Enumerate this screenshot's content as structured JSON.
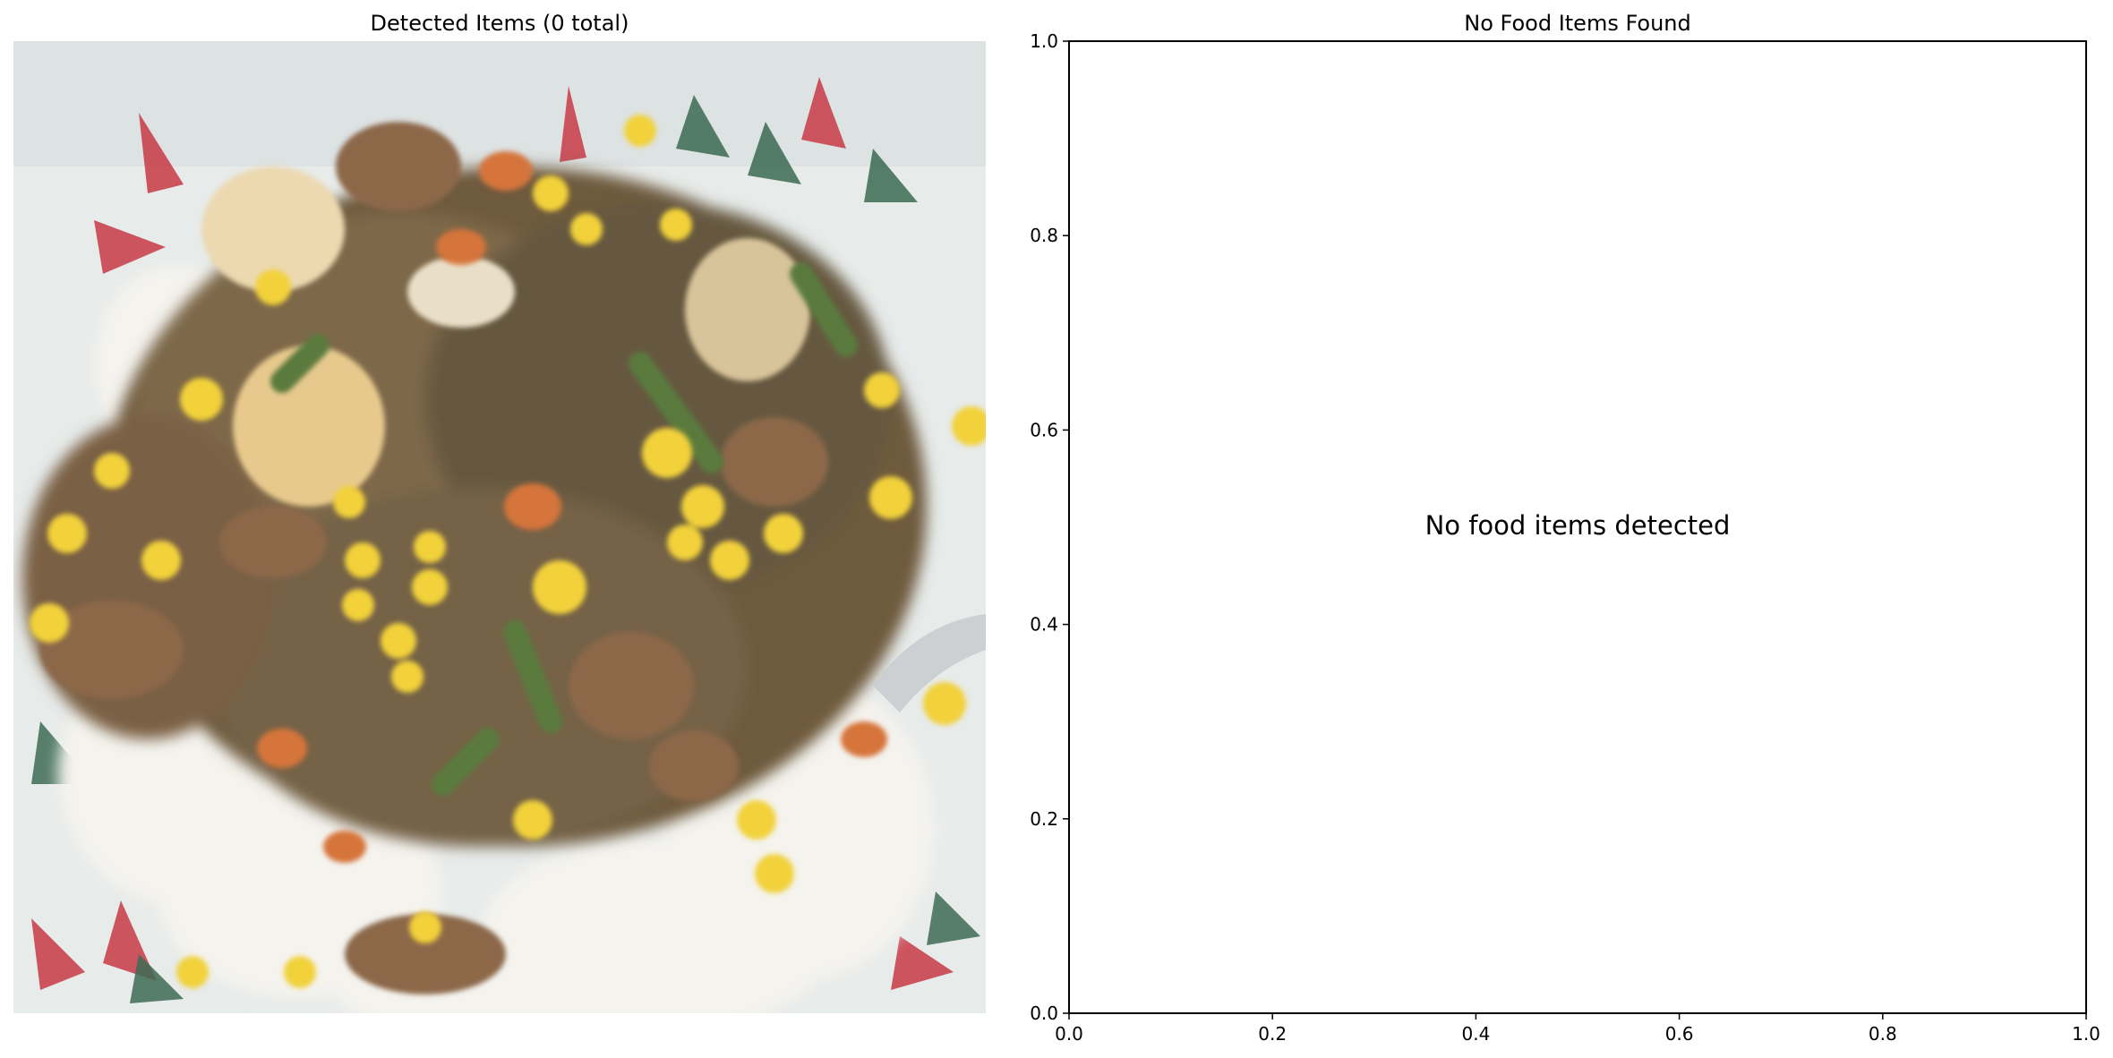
{
  "left_panel": {
    "title": "Detected Items (0 total)",
    "image_alt": "photo of a plate of rice topped with meat, corn, green beans and carrots"
  },
  "chart_data": {
    "type": "scatter",
    "title": "No Food Items Found",
    "xlabel": "",
    "ylabel": "",
    "xlim": [
      0,
      1
    ],
    "ylim": [
      0,
      1
    ],
    "x_ticks": [
      "0.0",
      "0.2",
      "0.4",
      "0.6",
      "0.8",
      "1.0"
    ],
    "y_ticks": [
      "0.0",
      "0.2",
      "0.4",
      "0.6",
      "0.8",
      "1.0"
    ],
    "grid": false,
    "series": [],
    "annotation": {
      "text": "No food items detected",
      "x": 0.5,
      "y": 0.5
    }
  }
}
